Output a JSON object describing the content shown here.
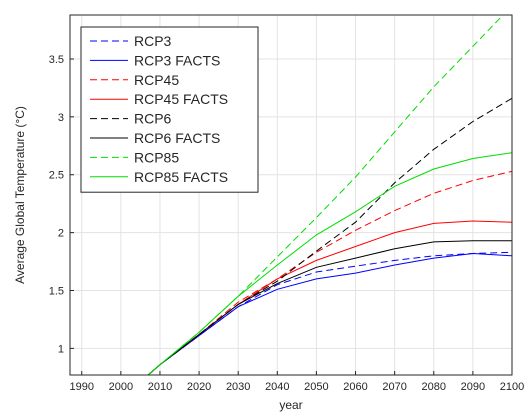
{
  "chart_data": {
    "type": "line",
    "title": "",
    "xlabel": "year",
    "ylabel": "Average Global Temperature (°C)",
    "xlim": [
      1987,
      2100
    ],
    "ylim": [
      0.77,
      3.88
    ],
    "grid": true,
    "legend_position": "top-left",
    "x_ticks": [
      1990,
      2000,
      2010,
      2020,
      2030,
      2040,
      2050,
      2060,
      2070,
      2080,
      2090,
      2100
    ],
    "x_tick_labels": [
      "1990",
      "2000",
      "2010",
      "2020",
      "2030",
      "2040",
      "2050",
      "2060",
      "2070",
      "2080",
      "2090",
      "2100"
    ],
    "y_ticks": [
      1,
      1.5,
      2,
      2.5,
      3,
      3.5
    ],
    "y_tick_labels": [
      "1",
      "1.5",
      "2",
      "2.5",
      "3",
      "3.5"
    ],
    "x": [
      2007,
      2010,
      2020,
      2030,
      2040,
      2050,
      2060,
      2070,
      2080,
      2090,
      2100
    ],
    "series": [
      {
        "name": "RCP3",
        "color": "#0000ff",
        "dash": "dashed",
        "values": [
          0.77,
          0.86,
          1.11,
          1.36,
          1.55,
          1.66,
          1.71,
          1.76,
          1.8,
          1.82,
          1.83
        ]
      },
      {
        "name": "RCP3 FACTS",
        "color": "#0000ff",
        "dash": "solid",
        "values": [
          0.77,
          0.86,
          1.11,
          1.36,
          1.51,
          1.6,
          1.65,
          1.72,
          1.78,
          1.82,
          1.8
        ]
      },
      {
        "name": "RCP45",
        "color": "#ff0000",
        "dash": "dashed",
        "values": [
          0.77,
          0.86,
          1.12,
          1.4,
          1.6,
          1.83,
          2.02,
          2.19,
          2.34,
          2.45,
          2.53
        ]
      },
      {
        "name": "RCP45 FACTS",
        "color": "#ff0000",
        "dash": "solid",
        "values": [
          0.77,
          0.86,
          1.12,
          1.38,
          1.6,
          1.76,
          1.88,
          2.0,
          2.08,
          2.1,
          2.09
        ]
      },
      {
        "name": "RCP6",
        "color": "#000000",
        "dash": "dashed",
        "values": [
          0.77,
          0.86,
          1.12,
          1.38,
          1.58,
          1.84,
          2.09,
          2.43,
          2.72,
          2.96,
          3.16
        ]
      },
      {
        "name": "RCP6 FACTS",
        "color": "#000000",
        "dash": "solid",
        "values": [
          0.77,
          0.86,
          1.12,
          1.38,
          1.56,
          1.7,
          1.78,
          1.86,
          1.92,
          1.93,
          1.93
        ]
      },
      {
        "name": "RCP85",
        "color": "#00dd00",
        "dash": "dashed",
        "values": [
          0.77,
          0.86,
          1.14,
          1.45,
          1.79,
          2.13,
          2.48,
          2.87,
          3.26,
          3.61,
          3.96
        ]
      },
      {
        "name": "RCP85 FACTS",
        "color": "#00dd00",
        "dash": "solid",
        "values": [
          0.77,
          0.86,
          1.14,
          1.45,
          1.72,
          1.98,
          2.18,
          2.4,
          2.55,
          2.64,
          2.69
        ]
      }
    ]
  }
}
